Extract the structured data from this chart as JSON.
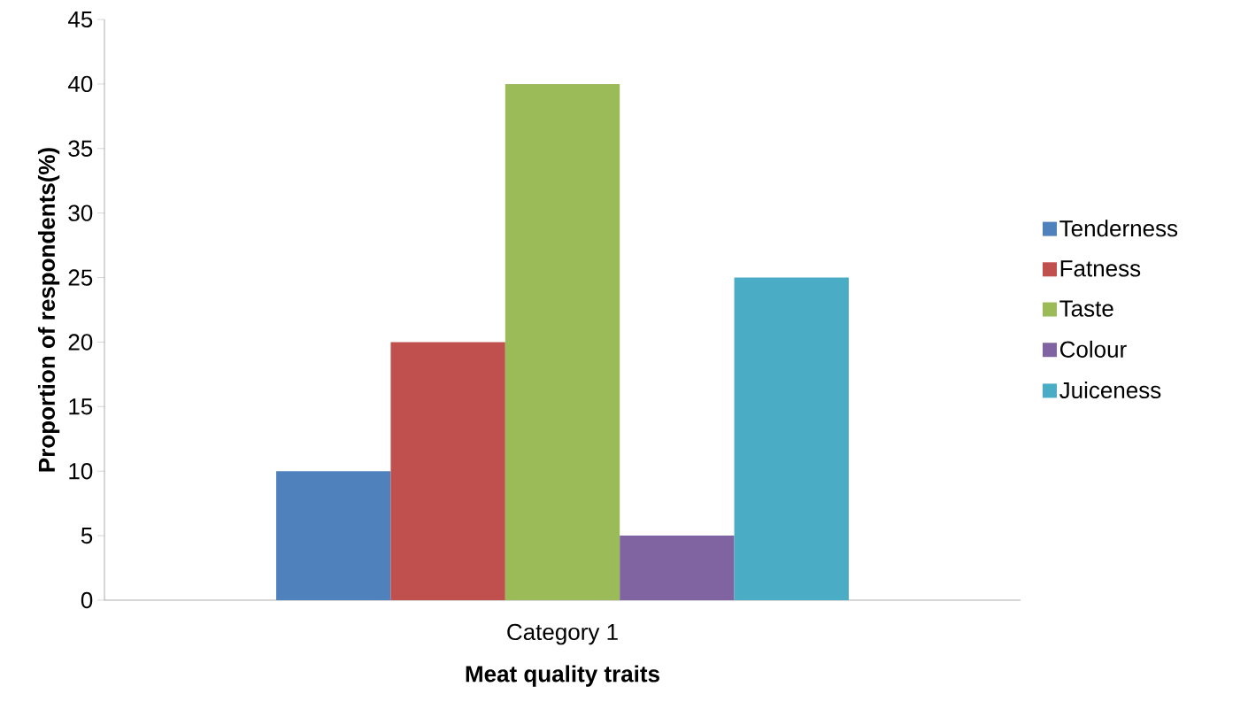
{
  "chart_data": {
    "type": "bar",
    "categories": [
      "Category 1"
    ],
    "series": [
      {
        "name": "Tenderness",
        "color": "#4f81bd",
        "values": [
          10
        ]
      },
      {
        "name": "Fatness",
        "color": "#c0504d",
        "values": [
          20
        ]
      },
      {
        "name": "Taste",
        "color": "#9bbb59",
        "values": [
          40
        ]
      },
      {
        "name": "Colour",
        "color": "#8064a2",
        "values": [
          5
        ]
      },
      {
        "name": "Juiceness",
        "color": "#4bacc6",
        "values": [
          25
        ]
      }
    ],
    "xlabel": "Meat quality traits",
    "ylabel": "Proportion of respondents(%)",
    "ylim": [
      0,
      45
    ],
    "yticks": [
      0,
      5,
      10,
      15,
      20,
      25,
      30,
      35,
      40,
      45
    ],
    "legend": "right"
  }
}
